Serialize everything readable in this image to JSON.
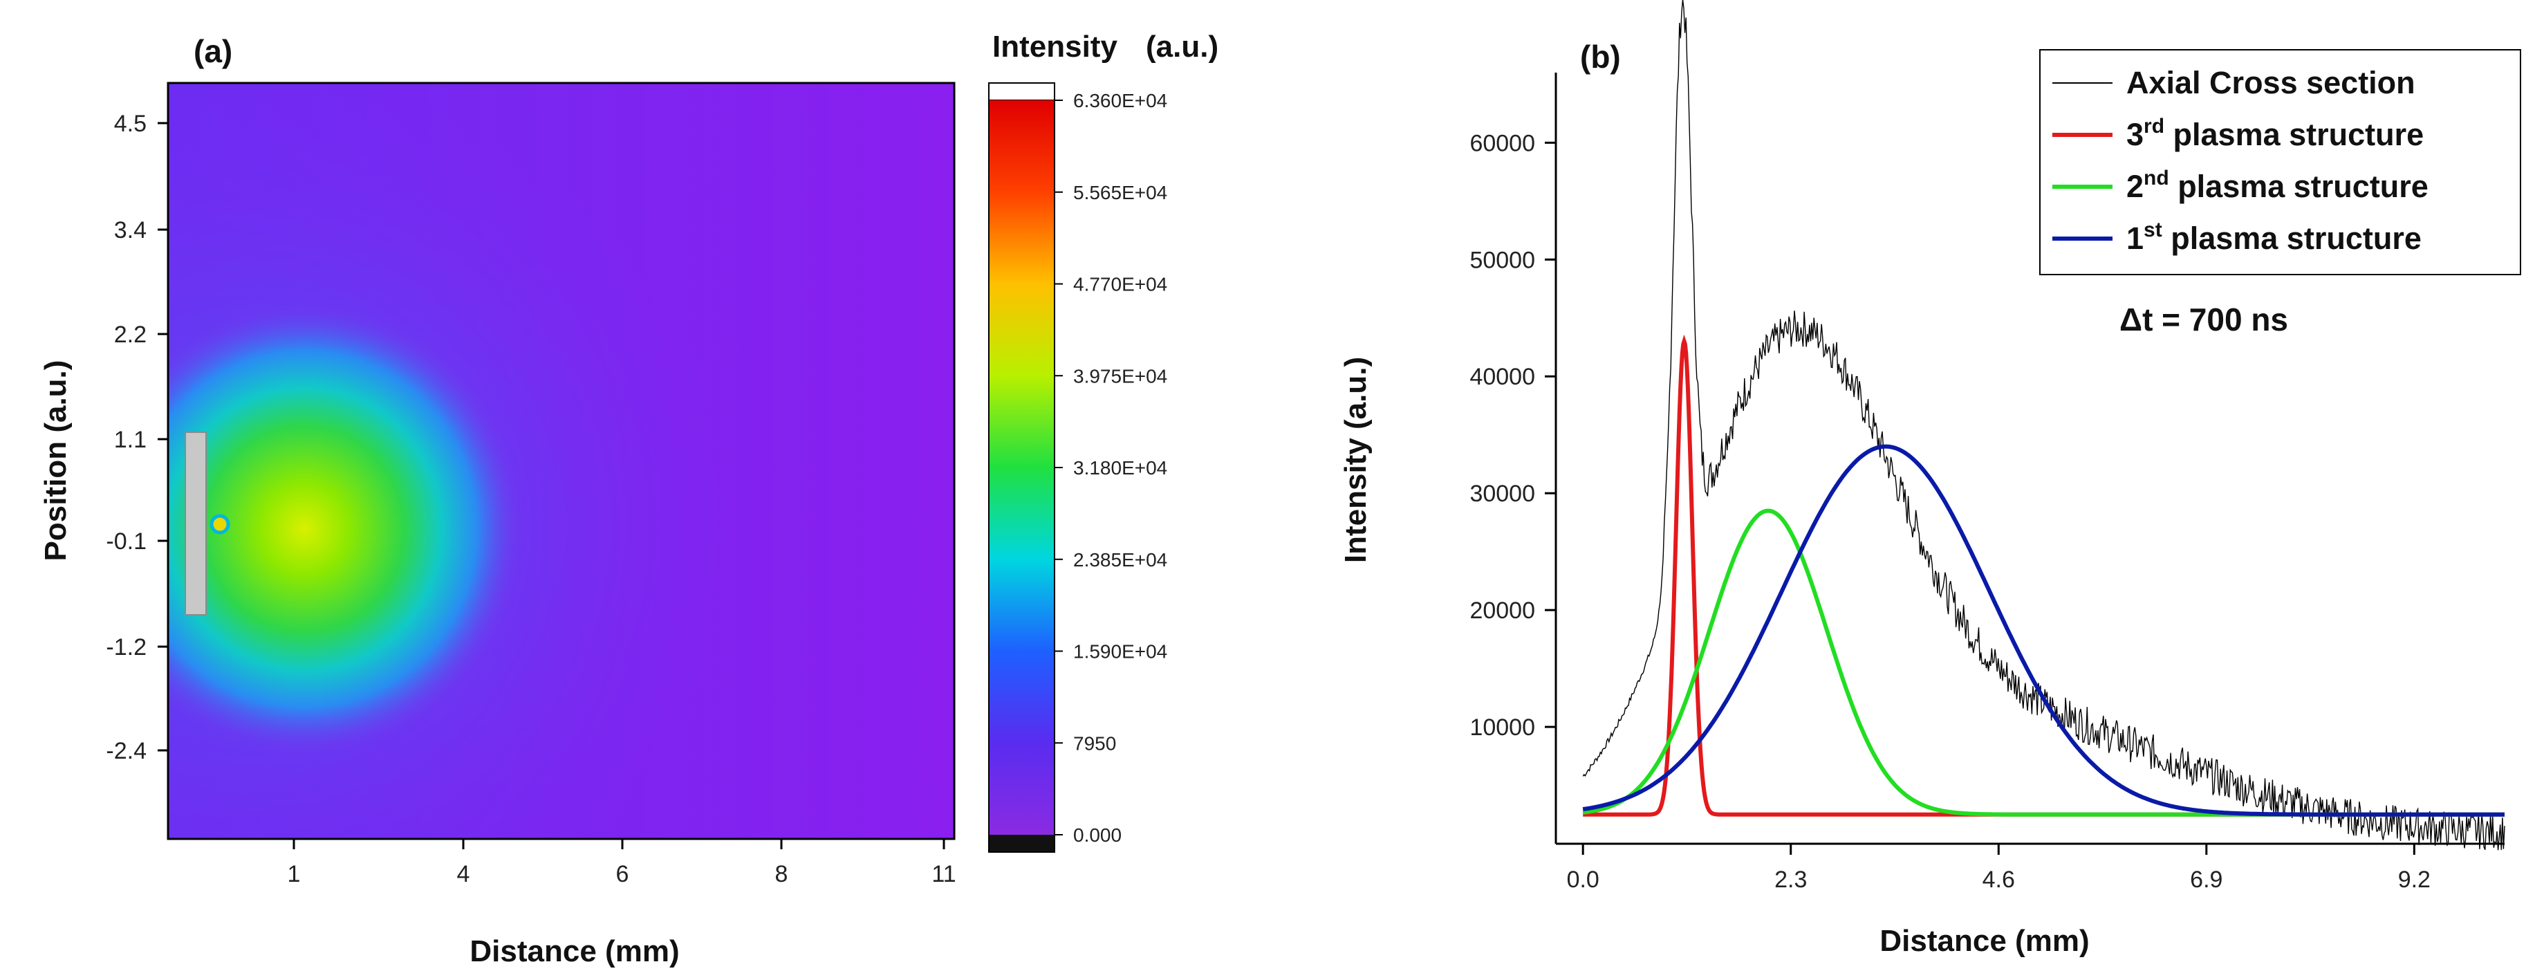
{
  "chart_data": [
    {
      "type": "heatmap",
      "panel_label": "(a)",
      "xlabel": "Distance (mm)",
      "ylabel": "Position (a.u.)",
      "x_ticks": [
        "1",
        "4",
        "6",
        "8",
        "11"
      ],
      "y_ticks": [
        "4.5",
        "3.4",
        "2.2",
        "1.1",
        "-0.1",
        "-1.2",
        "-2.4"
      ],
      "colorbar": {
        "title": "Intensity",
        "unit": "(a.u.)",
        "tick_labels": [
          "6.360E+04",
          "5.565E+04",
          "4.770E+04",
          "3.975E+04",
          "3.180E+04",
          "2.385E+04",
          "1.590E+04",
          "7950",
          "0.000"
        ],
        "min": 0,
        "max": 63600
      },
      "plume": {
        "center_position": -0.1,
        "peak_intensity": 39750,
        "background_intensity": 7950
      }
    },
    {
      "type": "line",
      "panel_label": "(b)",
      "xlabel": "Distance (mm)",
      "ylabel": "Intensity (a.u.)",
      "xlim": [
        -0.3,
        10.2
      ],
      "ylim": [
        0,
        66000
      ],
      "x_ticks": [
        "0.0",
        "2.3",
        "4.6",
        "6.9",
        "9.2"
      ],
      "y_ticks": [
        "10000",
        "20000",
        "30000",
        "40000",
        "50000",
        "60000"
      ],
      "baseline": 2500,
      "annotation": "Δt = 700 ns",
      "series": [
        {
          "name": "Axial Cross section",
          "color": "#000000",
          "kind": "measured",
          "peaks": [
            {
              "position": 1.1,
              "amplitude": 48000,
              "width": 0.1
            },
            {
              "position": 2.3,
              "amplitude": 38000,
              "width": 1.1
            },
            {
              "position": 4.6,
              "amplitude": 10000,
              "width": 2.0
            }
          ]
        },
        {
          "name": "3rd plasma structure",
          "color": "#e31a1c",
          "kind": "gaussian",
          "center": 1.12,
          "peak": 43000,
          "sigma": 0.09
        },
        {
          "name": "2nd plasma structure",
          "color": "#22dd22",
          "kind": "gaussian",
          "center": 2.05,
          "peak": 28500,
          "sigma": 0.65
        },
        {
          "name": "1st plasma structure",
          "color": "#0a1aa8",
          "kind": "gaussian",
          "center": 3.35,
          "peak": 34000,
          "sigma": 1.15
        }
      ],
      "legend": [
        {
          "pre": "Axial Cross section",
          "sup": "",
          "post": ""
        },
        {
          "pre": "3",
          "sup": "rd",
          "post": " plasma structure"
        },
        {
          "pre": "2",
          "sup": "nd",
          "post": " plasma structure"
        },
        {
          "pre": "1",
          "sup": "st",
          "post": " plasma structure"
        }
      ]
    }
  ]
}
